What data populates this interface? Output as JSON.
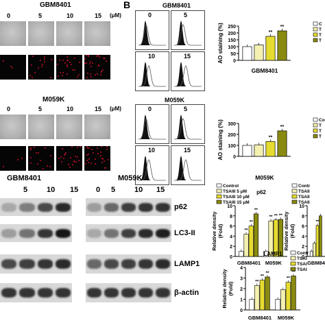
{
  "panel_b_label": "B",
  "micro": {
    "gbm": {
      "title": "GBM8401",
      "doses": [
        "0",
        "5",
        "10",
        "15"
      ],
      "unit": "(μM)"
    },
    "m059k": {
      "title": "M059K",
      "doses": [
        "0",
        "5",
        "10",
        "15"
      ],
      "unit": "(μM)"
    }
  },
  "flow": {
    "gbm": {
      "title": "GBM8401",
      "panels": [
        "0",
        "5",
        "10",
        "15"
      ]
    },
    "m059k": {
      "title": "M059K",
      "panels": [
        "0",
        "5",
        "10",
        "15"
      ]
    }
  },
  "western": {
    "title_left": "GBM8401",
    "title_right": "M059K",
    "doses": [
      "5",
      "10",
      "15",
      "0",
      "5",
      "10",
      "15"
    ],
    "bands": [
      "p62",
      "LC3-II",
      "LAMP1",
      "β-actin"
    ]
  },
  "chart_data": [
    {
      "type": "bar",
      "xlabel": "GBM8401",
      "ylabel": "AO staining (%)",
      "ylim": [
        0,
        250
      ],
      "yticks": [
        "0",
        "50",
        "100",
        "150",
        "200",
        "250"
      ],
      "categories": [
        "0",
        "5",
        "10",
        "15"
      ],
      "values": [
        100,
        112,
        175,
        215
      ],
      "significance": [
        "",
        "",
        "**",
        "**"
      ],
      "legend": [
        "C",
        "T",
        "T",
        "T"
      ],
      "colors": [
        "#ffffff",
        "#f4f0b0",
        "#e6dc30",
        "#8a8a10"
      ]
    },
    {
      "type": "bar",
      "xlabel": "M059K",
      "ylabel": "AO staining (%)",
      "ylim": [
        0,
        300
      ],
      "yticks": [
        "0",
        "100",
        "200",
        "300"
      ],
      "categories": [
        "0",
        "5",
        "10",
        "15"
      ],
      "values": [
        100,
        105,
        135,
        232
      ],
      "significance": [
        "",
        "",
        "**",
        "**"
      ],
      "legend": [
        "Co",
        "T",
        "T",
        "T"
      ],
      "colors": [
        "#ffffff",
        "#f4f0b0",
        "#e6dc30",
        "#8a8a10"
      ]
    },
    {
      "type": "bar",
      "title": "p62",
      "ylabel": "Relative density (Fold)",
      "ylim": [
        0,
        10
      ],
      "yticks": [
        "0",
        "2",
        "4",
        "6",
        "8",
        "10"
      ],
      "categories": [
        "GBM8401",
        "M059K"
      ],
      "series": [
        {
          "name": "Control",
          "values": [
            1.0,
            1.0
          ]
        },
        {
          "name": "TSAIII 5 μM",
          "values": [
            4.4,
            7.0
          ]
        },
        {
          "name": "TSAIII 10 μM",
          "values": [
            6.0,
            7.2
          ]
        },
        {
          "name": "TSAIII 15 μM",
          "values": [
            8.4,
            7.3
          ]
        }
      ],
      "significance": [
        [
          "",
          "**",
          "**",
          "**"
        ],
        [
          "",
          "**",
          "**",
          "**"
        ]
      ],
      "colors": [
        "#ffffff",
        "#f4f0b0",
        "#e6dc30",
        "#8a8a10"
      ]
    },
    {
      "type": "bar",
      "ylabel": "Relative density (Fold)",
      "ylim": [
        0,
        10
      ],
      "yticks": [
        "0",
        "2",
        "4",
        "6",
        "8",
        "10"
      ],
      "categories": [
        "GBM84"
      ],
      "series": [
        {
          "name": "Contr",
          "values": [
            1.0
          ]
        },
        {
          "name": "TSAII",
          "values": [
            2.6
          ]
        },
        {
          "name": "TSAII",
          "values": [
            6.1
          ]
        },
        {
          "name": "TSAII",
          "values": [
            8.0
          ]
        }
      ],
      "significance": [
        [
          "",
          "",
          "**",
          ""
        ]
      ],
      "colors": [
        "#ffffff",
        "#f4f0b0",
        "#e6dc30",
        "#8a8a10"
      ]
    },
    {
      "type": "bar",
      "title": "LAMP1",
      "ylabel": "Relative density (Fold)",
      "ylim": [
        0,
        4
      ],
      "yticks": [
        "0",
        "1",
        "2",
        "3",
        "4"
      ],
      "categories": [
        "GBM8401",
        "M059K"
      ],
      "series": [
        {
          "name": "Contr",
          "values": [
            1.0,
            1.0
          ]
        },
        {
          "name": "TSAI",
          "values": [
            2.3,
            1.9
          ]
        },
        {
          "name": "TSAI",
          "values": [
            2.8,
            2.6
          ]
        },
        {
          "name": "TSAI",
          "values": [
            3.1,
            3.2
          ]
        }
      ],
      "significance": [
        [
          "",
          "**",
          "**",
          "**"
        ],
        [
          "",
          "",
          "**",
          "**"
        ]
      ],
      "colors": [
        "#ffffff",
        "#f4f0b0",
        "#e6dc30",
        "#8a8a10"
      ]
    }
  ]
}
